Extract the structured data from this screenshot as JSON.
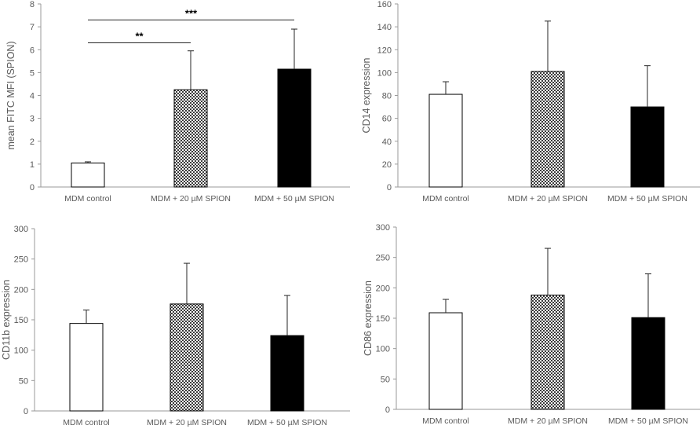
{
  "colors": {
    "axis": "#9a9a9a",
    "text": "#595959",
    "bar_stroke": "#000000",
    "control_fill": "#ffffff",
    "spion20_fill": "checkerboard",
    "spion50_fill": "#000000",
    "error": "#262626",
    "sig_line": "#262626"
  },
  "chart_data": [
    {
      "type": "bar",
      "panel": "top-left",
      "categories": [
        "MDM control",
        "MDM + 20 µM SPION",
        "MDM + 50 µM SPION"
      ],
      "values": [
        1.05,
        4.25,
        5.15
      ],
      "errors": [
        0.05,
        1.7,
        1.75
      ],
      "ylabel": "mean FITC MFI (SPION)",
      "ylim": [
        0,
        8
      ],
      "yticks": [
        0,
        1,
        2,
        3,
        4,
        5,
        6,
        7,
        8
      ],
      "ytick_labels": [
        "0",
        "1",
        "2",
        "3",
        "4",
        "5",
        "6",
        "7",
        "8"
      ],
      "significance": [
        {
          "from": 0,
          "to": 1,
          "y": 6.3,
          "label": "**"
        },
        {
          "from": 0,
          "to": 2,
          "y": 7.3,
          "label": "***"
        }
      ]
    },
    {
      "type": "bar",
      "panel": "top-right",
      "categories": [
        "MDM control",
        "MDM + 20 µM SPION",
        "MDM + 50 µM SPION"
      ],
      "values": [
        81,
        101,
        70
      ],
      "errors": [
        11,
        44,
        36
      ],
      "ylabel": "CD14 expression",
      "ylim": [
        0,
        160
      ],
      "yticks": [
        0,
        20,
        40,
        60,
        80,
        100,
        120,
        140,
        160
      ],
      "ytick_labels": [
        "0",
        "20",
        "40",
        "60",
        "80",
        "100",
        "120",
        "140",
        "160"
      ],
      "significance": []
    },
    {
      "type": "bar",
      "panel": "bottom-left",
      "categories": [
        "MDM control",
        "MDM + 20 µM SPION",
        "MDM + 50 µM SPION"
      ],
      "values": [
        144,
        176,
        124
      ],
      "errors": [
        22,
        67,
        66
      ],
      "ylabel": "CD11b expression",
      "ylim": [
        0,
        300
      ],
      "yticks": [
        0,
        50,
        100,
        150,
        200,
        250,
        300
      ],
      "ytick_labels": [
        "0",
        "50",
        "100",
        "150",
        "200",
        "250",
        "300"
      ],
      "significance": []
    },
    {
      "type": "bar",
      "panel": "bottom-right",
      "categories": [
        "MDM control",
        "MDM + 20 µM SPION",
        "MDM + 50 µM SPION"
      ],
      "values": [
        159,
        188,
        151
      ],
      "errors": [
        22,
        77,
        72
      ],
      "ylabel": "CD86 expression",
      "ylim": [
        0,
        300
      ],
      "yticks": [
        0,
        50,
        100,
        150,
        200,
        250,
        300
      ],
      "ytick_labels": [
        "0",
        "50",
        "100",
        "150",
        "200",
        "250",
        "300"
      ],
      "significance": []
    }
  ]
}
